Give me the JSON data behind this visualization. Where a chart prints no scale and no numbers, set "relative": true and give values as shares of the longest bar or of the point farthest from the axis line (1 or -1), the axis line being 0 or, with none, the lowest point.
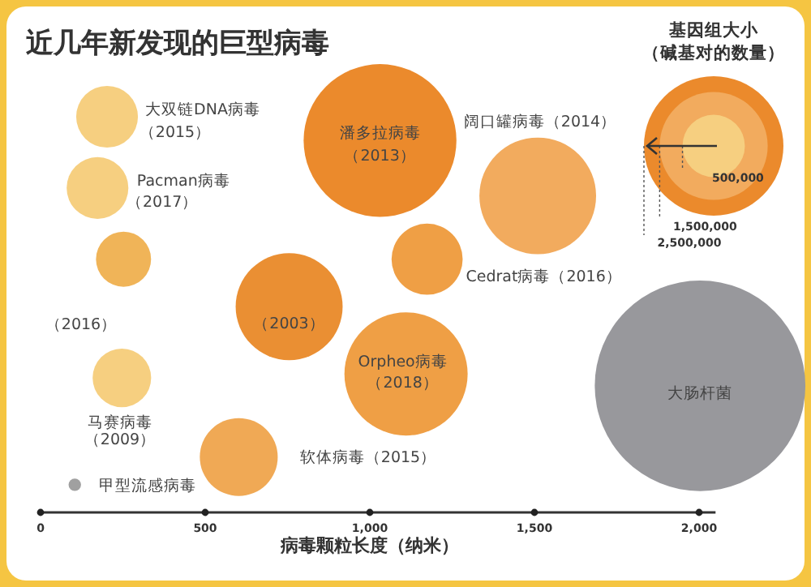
{
  "chart_data": {
    "type": "bubble",
    "title": "近几年新发现的巨型病毒",
    "xlabel": "病毒颗粒长度（纳米）",
    "legend_title": "基因组大小（碱基对的数量）",
    "relative": true,
    "xlim": [
      0,
      2050
    ],
    "xticks": [
      {
        "value": 0,
        "label": "0"
      },
      {
        "value": 500,
        "label": "500"
      },
      {
        "value": 1000,
        "label": "1,000"
      },
      {
        "value": 1500,
        "label": "1,500"
      },
      {
        "value": 2000,
        "label": "2,000"
      }
    ],
    "size_legend": [
      {
        "value": 500000,
        "label": "500,000"
      },
      {
        "value": 1500000,
        "label": "1,500,000"
      },
      {
        "value": 2500000,
        "label": "2,500,000"
      }
    ],
    "series": [
      {
        "x": [
          202,
          173,
          252,
          1031,
          1510,
          755,
          1174,
          1110,
          247,
          602,
          104,
          2003
        ],
        "values": [
          1.0,
          0.82,
          0.64,
          0.94,
          0.8,
          0.52,
          0.64,
          0.35,
          0.34,
          0.14,
          0.07,
          0.32
        ],
        "sizes": [
          490000,
          490000,
          390000,
          3000000,
          1750000,
          1470000,
          650000,
          1950000,
          440000,
          780000,
          20000,
          5700000
        ],
        "colors": [
          "#f6cf80",
          "#f6cf80",
          "#f0b458",
          "#eb8a2c",
          "#f2ab5e",
          "#ea8f33",
          "#ef9f45",
          "#ef9f45",
          "#f6cf80",
          "#f0a955",
          "#a0a0a0",
          "#98989c"
        ]
      }
    ],
    "annotations": [
      {
        "text": "大双链DNA病毒",
        "x": 202,
        "y": 1.0
      },
      {
        "text": "（2015）",
        "x": 202,
        "y": 1.0
      },
      {
        "text": "Pacman病毒",
        "x": 173,
        "y": 0.82
      },
      {
        "text": "（2017）",
        "x": 173,
        "y": 0.82
      },
      "（2016）",
      {
        "text": "潘多拉病毒",
        "x": 1031,
        "y": 0.94
      },
      {
        "text": "（2013）",
        "x": 1031,
        "y": 0.94
      },
      "阔口罐病毒（2014）",
      {
        "text": "（2003）",
        "x": 755,
        "y": 0.52
      },
      {
        "text": "Cedrat病毒（2016）",
        "x": 1174,
        "y": 0.64
      },
      {
        "text": "Orpheo病毒",
        "x": 1110,
        "y": 0.35
      },
      {
        "text": "（2018）",
        "x": 1110,
        "y": 0.35
      },
      {
        "text": "马赛病毒",
        "x": 247,
        "y": 0.34
      },
      "（2009）",
      "软体病毒（2015）",
      {
        "text": "甲型流感病毒",
        "x": 104,
        "y": 0.07
      },
      {
        "text": "大肠杆菌",
        "x": 2003,
        "y": 0.32
      }
    ]
  }
}
